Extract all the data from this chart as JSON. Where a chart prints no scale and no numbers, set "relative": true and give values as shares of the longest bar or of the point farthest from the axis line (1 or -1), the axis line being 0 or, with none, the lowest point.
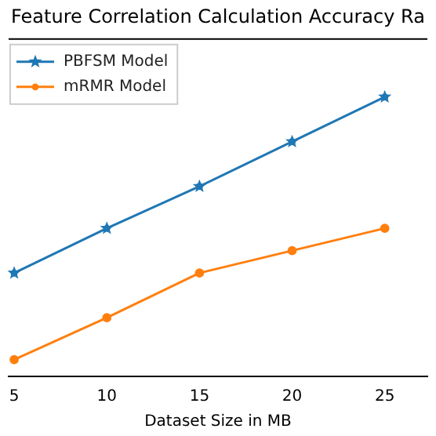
{
  "chart_data": {
    "type": "line",
    "title": "Feature Correlation Calculation Accuracy Ra",
    "xlabel": "Dataset Size in MB",
    "relative": true,
    "x": [
      5,
      10,
      15,
      20,
      25
    ],
    "xlim": [
      4.7,
      27.3
    ],
    "xticks": [
      5,
      10,
      15,
      20,
      25
    ],
    "legend": "top left",
    "grid": false,
    "series": [
      {
        "name": "PBFSM Model",
        "color": "#1f77b4",
        "marker": "star",
        "values": [
          0.37,
          0.53,
          0.68,
          0.84,
          1
        ]
      },
      {
        "name": "mRMR Model",
        "color": "#ff7f0e",
        "marker": "circle",
        "values": [
          0.06,
          0.21,
          0.37,
          0.45,
          0.53
        ]
      }
    ]
  }
}
